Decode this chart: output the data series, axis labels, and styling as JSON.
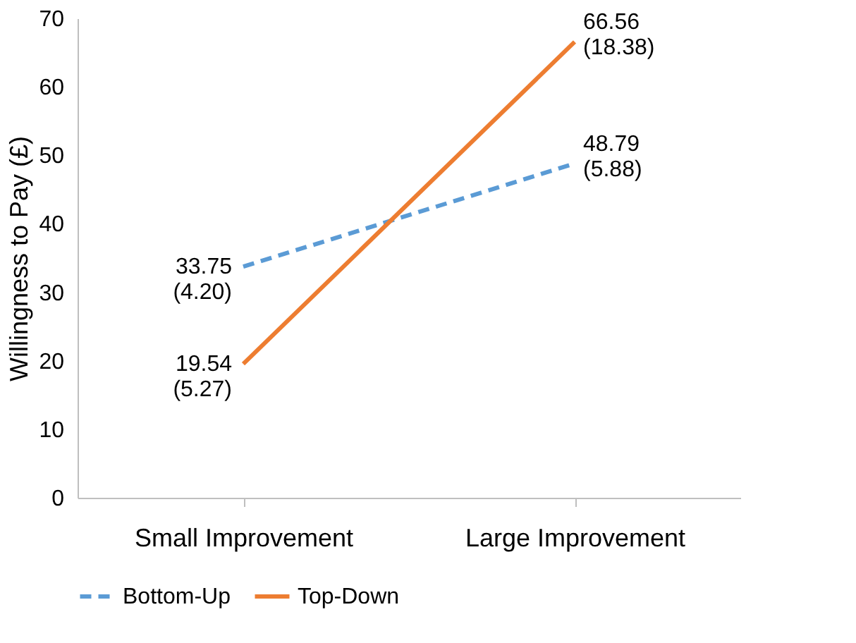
{
  "chart_data": {
    "type": "line",
    "ylabel": "Willingness to Pay (£)",
    "categories": [
      "Small Improvement",
      "Large Improvement"
    ],
    "series": [
      {
        "name": "Bottom-Up",
        "color": "#5b9bd5",
        "line_style": "dashed",
        "values": [
          33.75,
          48.79
        ],
        "value_labels": [
          "33.75\n(4.20)",
          "48.79\n(5.88)"
        ]
      },
      {
        "name": "Top-Down",
        "color": "#ed7d31",
        "line_style": "solid",
        "values": [
          19.54,
          66.56
        ],
        "value_labels": [
          "19.54\n(5.27)",
          "66.56\n(18.38)"
        ]
      }
    ],
    "ylim": [
      0,
      70
    ],
    "yticks": [
      0,
      10,
      20,
      30,
      40,
      50,
      60,
      70
    ],
    "grid": false,
    "legend": "bottom",
    "marker": "none"
  }
}
